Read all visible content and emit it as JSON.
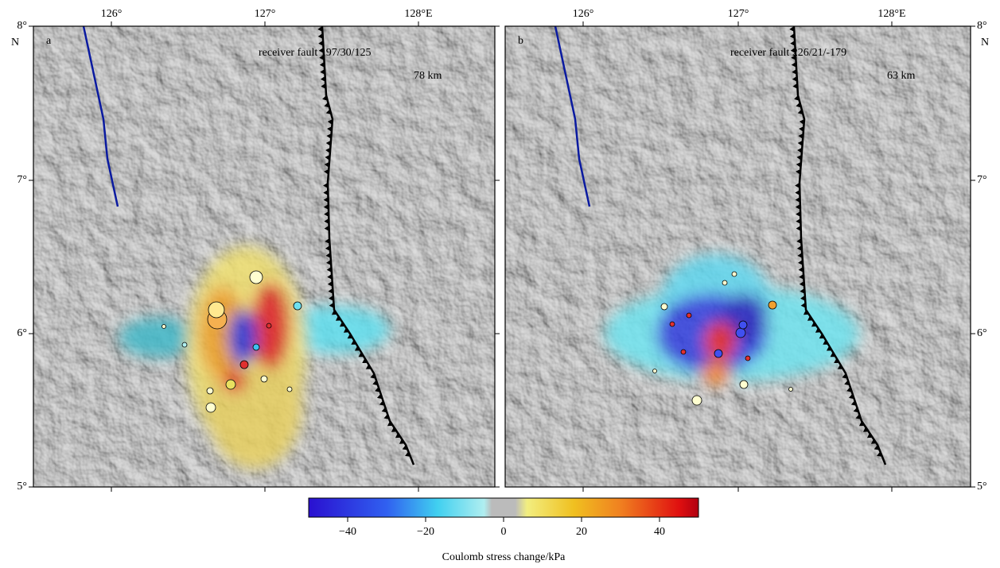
{
  "panels": [
    {
      "label": "a",
      "receiver_fault": "receiver fault 197/30/125",
      "depth": "78 km"
    },
    {
      "label": "b",
      "receiver_fault": "receiver fault 226/21/-179",
      "depth": "63 km"
    }
  ],
  "axes": {
    "x_labels": [
      "126°",
      "127°",
      "128°E"
    ],
    "y_labels": [
      "8°",
      "7°",
      "6°",
      "5°"
    ],
    "y_unit": "N"
  },
  "colorbar": {
    "title": "Coulomb stress change/kPa",
    "lim": [
      -50,
      50
    ],
    "ticks": [
      {
        "value": -40,
        "label": "−40"
      },
      {
        "value": -20,
        "label": "−20"
      },
      0,
      20,
      40
    ]
  }
}
